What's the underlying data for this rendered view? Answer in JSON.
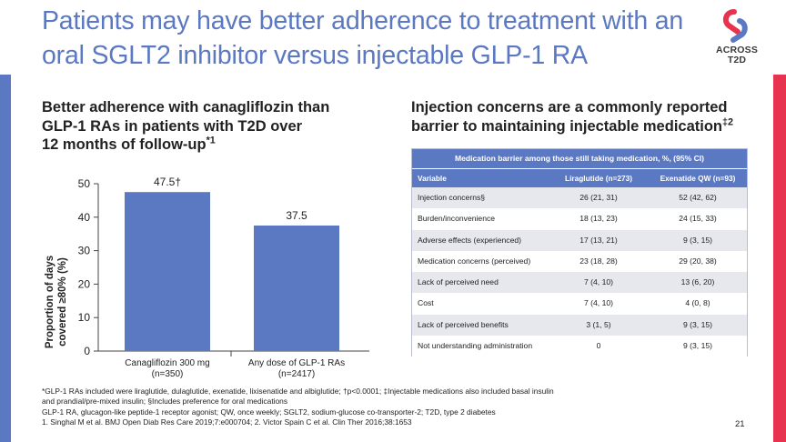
{
  "title_lines": [
    "Patients may have better adherence to treatment with an",
    "oral SGLT2 inhibitor versus injectable GLP-1 RA"
  ],
  "logo": {
    "word_line1": "ACROSS",
    "word_line2": "T2D",
    "colors": [
      "#e8334f",
      "#5b78c2"
    ]
  },
  "left_panel": {
    "heading_line1": "Better adherence with canagliflozin than",
    "heading_line2": "GLP-1 RAs in patients with T2D over",
    "heading_line3": "12 months of follow-up",
    "heading_sup": "*1"
  },
  "chart_data": {
    "type": "bar",
    "categories": [
      {
        "line1": "Canagliflozin 300 mg",
        "line2": "(n=350)"
      },
      {
        "line1": "Any dose of GLP-1 RAs",
        "line2": "(n=2417)"
      }
    ],
    "values": [
      47.5,
      37.5
    ],
    "data_labels": [
      "47.5†",
      "37.5"
    ],
    "ylabel_line1": "Proportion of days",
    "ylabel_line2": "covered ≥80% (%)",
    "ylim": [
      0,
      50
    ],
    "yticks": [
      0,
      10,
      20,
      30,
      40,
      50
    ],
    "bar_color": "#5b78c2",
    "grid": false
  },
  "right_panel": {
    "heading_line1": "Injection concerns are a commonly reported",
    "heading_line2": "barrier to maintaining injectable medication",
    "heading_sup": "‡2",
    "table": {
      "caption": "Medication barrier among those still taking medication, %, (95% CI)",
      "headers": [
        "Variable",
        "Liraglutide (n=273)",
        "Exenatide QW (n=93)"
      ],
      "rows": [
        [
          "Injection concerns§",
          "26 (21, 31)",
          "52 (42, 62)"
        ],
        [
          "Burden/inconvenience",
          "18 (13, 23)",
          "24 (15, 33)"
        ],
        [
          "Adverse effects (experienced)",
          "17 (13, 21)",
          "9 (3, 15)"
        ],
        [
          "Medication concerns (perceived)",
          "23 (18, 28)",
          "29 (20, 38)"
        ],
        [
          "Lack of perceived need",
          "7 (4, 10)",
          "13 (6, 20)"
        ],
        [
          "Cost",
          "7 (4, 10)",
          "4 (0, 8)"
        ],
        [
          "Lack of perceived benefits",
          "3 (1, 5)",
          "9 (3, 15)"
        ],
        [
          "Not understanding administration",
          "0",
          "9 (3, 15)"
        ]
      ]
    }
  },
  "footnotes": [
    "*GLP-1 RAs included were liraglutide, dulaglutide, exenatide, lixisenatide and albiglutide; †p<0.0001; ‡Injectable medications also included basal insulin",
    "and prandial/pre-mixed insulin; §Includes preference for oral medications",
    "GLP-1 RA, glucagon-like peptide-1 receptor agonist; QW, once weekly; SGLT2, sodium-glucose co-transporter-2; T2D, type 2 diabetes",
    "1. Singhal M et al. BMJ Open Diab Res Care 2019;7:e000704; 2. Victor Spain C et al. Clin Ther 2016;38:1653"
  ],
  "page_number": "21",
  "colors": {
    "accent_blue": "#5b78c2",
    "accent_red": "#e8334f"
  }
}
